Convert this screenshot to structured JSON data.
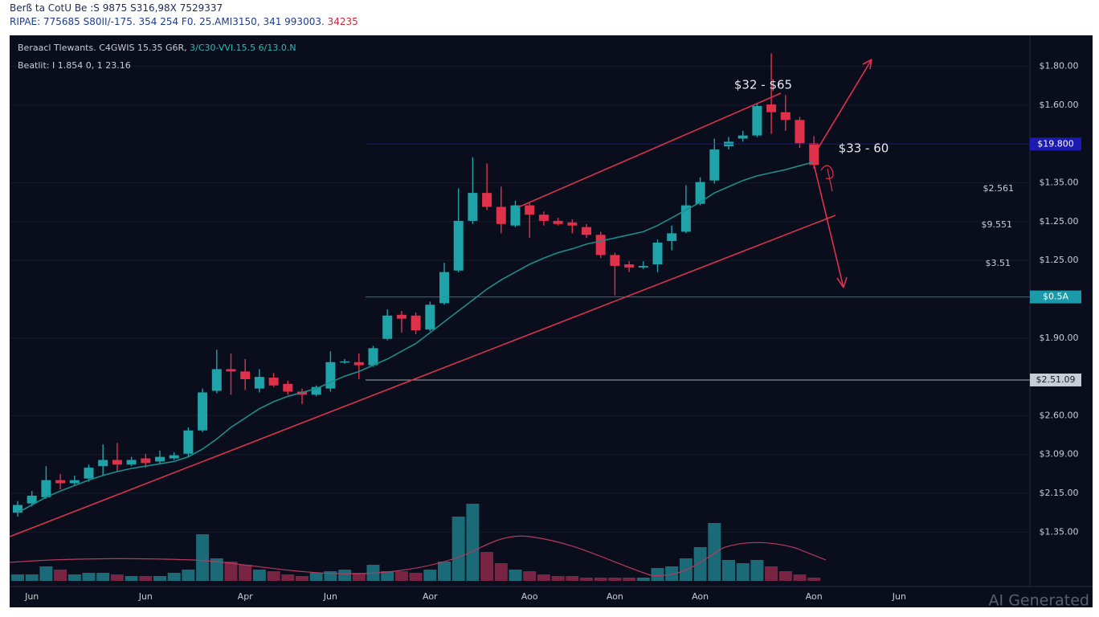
{
  "header": {
    "line1": "Berß ta CotU Be :S 9875 S316,98X 7529337",
    "line2": "RIPAE: 775685 S80II/-175. 354 254 F0. 25.AMI3150, 341 993003.",
    "line2_red": "34235"
  },
  "chart_data": {
    "type": "candlestick",
    "legend_line1": "Beraacl Tlewants. C4GWIS 15.35 G6R,",
    "legend_line1_teal": "3/C30-VVI.15.5 6/13.0.N",
    "legend_line2": "Beatlit: I 1.854 0, 1 23.16",
    "annotations": [
      "$32 - $65",
      "$33 - 60",
      "$2.561",
      "$9.551",
      "$3.51"
    ],
    "watermark": "AI Generated",
    "categories": [
      null,
      "Jun",
      null,
      null,
      null,
      null,
      null,
      null,
      null,
      "Jun",
      null,
      null,
      null,
      null,
      null,
      null,
      "Apr",
      null,
      null,
      null,
      null,
      null,
      "Jun",
      null,
      null,
      null,
      null,
      null,
      null,
      "Aor",
      null,
      null,
      null,
      null,
      null,
      null,
      "Aoo",
      null,
      null,
      null,
      null,
      null,
      "Aon",
      null,
      null,
      null,
      null,
      null,
      "Aon",
      null,
      null,
      null,
      null,
      null,
      null,
      null,
      "Aon",
      null,
      null,
      null,
      null,
      null,
      "Jun"
    ],
    "open": [
      1.5,
      1.74,
      1.9,
      2.34,
      2.26,
      2.38,
      2.7,
      2.86,
      2.74,
      2.9,
      2.82,
      2.9,
      3.02,
      3.62,
      4.64,
      5.2,
      5.14,
      4.7,
      4.98,
      4.82,
      4.62,
      4.54,
      4.7,
      5.38,
      5.38,
      5.3,
      5.98,
      6.6,
      6.58,
      6.22,
      6.9,
      7.74,
      9.02,
      9.74,
      9.38,
      8.9,
      9.42,
      9.18,
      9.02,
      8.98,
      8.86,
      8.66,
      8.14,
      7.9,
      7.82,
      7.9,
      8.5,
      8.74,
      9.46,
      10.06,
      10.94,
      11.14,
      11.22,
      12.02,
      11.82,
      11.62,
      11.02,
      null,
      null,
      null,
      null,
      null,
      null
    ],
    "high": [
      1.8,
      2.06,
      2.7,
      2.5,
      2.46,
      2.74,
      3.26,
      3.3,
      2.94,
      3.02,
      3.1,
      3.06,
      3.7,
      4.7,
      5.7,
      5.6,
      5.46,
      5.2,
      5.1,
      4.9,
      4.7,
      4.78,
      5.66,
      5.46,
      5.6,
      5.8,
      6.74,
      6.7,
      6.66,
      6.94,
      7.94,
      9.86,
      10.66,
      10.5,
      9.9,
      9.54,
      9.5,
      9.26,
      9.1,
      9.06,
      8.94,
      8.74,
      8.2,
      7.98,
      7.98,
      8.54,
      8.9,
      9.94,
      10.14,
      11.14,
      11.18,
      11.34,
      12.06,
      13.34,
      12.26,
      11.7,
      11.2,
      null,
      null,
      null,
      null,
      null,
      null
    ],
    "low": [
      1.4,
      1.66,
      1.86,
      2.1,
      2.22,
      2.3,
      2.46,
      2.54,
      2.7,
      2.66,
      2.74,
      2.86,
      2.94,
      3.58,
      4.58,
      4.54,
      4.66,
      4.6,
      4.74,
      4.54,
      4.3,
      4.5,
      4.62,
      5.34,
      4.94,
      5.26,
      5.94,
      6.14,
      6.1,
      6.18,
      6.86,
      7.7,
      8.94,
      9.3,
      8.7,
      8.86,
      8.58,
      8.9,
      8.9,
      8.7,
      8.58,
      8.06,
      7.1,
      7.7,
      7.78,
      7.7,
      8.26,
      8.7,
      9.42,
      9.98,
      10.86,
      11.06,
      11.18,
      11.26,
      11.34,
      10.9,
      10.36,
      null,
      null,
      null,
      null,
      null,
      null
    ],
    "close": [
      1.7,
      1.94,
      2.34,
      2.26,
      2.34,
      2.66,
      2.86,
      2.74,
      2.86,
      2.78,
      2.94,
      2.98,
      3.62,
      4.6,
      5.2,
      5.14,
      4.94,
      5.0,
      4.78,
      4.62,
      4.54,
      4.74,
      5.38,
      5.4,
      5.3,
      5.74,
      6.58,
      6.5,
      6.2,
      6.86,
      7.7,
      9.02,
      9.74,
      9.38,
      8.94,
      9.42,
      9.18,
      9.02,
      8.94,
      8.9,
      8.66,
      8.14,
      7.86,
      7.82,
      7.86,
      8.46,
      8.7,
      9.42,
      10.02,
      10.86,
      11.06,
      11.22,
      11.98,
      11.82,
      11.62,
      11.02,
      10.46,
      null,
      null,
      null,
      null,
      null,
      null
    ],
    "volume": [
      8,
      8,
      18,
      14,
      8,
      10,
      10,
      8,
      6,
      6,
      6,
      10,
      14,
      58,
      28,
      24,
      20,
      14,
      12,
      8,
      6,
      10,
      12,
      14,
      10,
      20,
      12,
      12,
      10,
      14,
      24,
      80,
      96,
      36,
      22,
      14,
      12,
      8,
      6,
      6,
      4,
      4,
      4,
      4,
      4,
      16,
      18,
      28,
      42,
      72,
      26,
      22,
      26,
      18,
      12,
      8,
      4,
      null,
      null,
      null,
      null,
      null,
      null
    ],
    "ma": [
      1.5,
      1.7,
      1.9,
      2.06,
      2.2,
      2.34,
      2.46,
      2.56,
      2.64,
      2.7,
      2.76,
      2.82,
      2.94,
      3.14,
      3.4,
      3.7,
      3.94,
      4.18,
      4.36,
      4.5,
      4.6,
      4.7,
      4.86,
      5.02,
      5.14,
      5.3,
      5.46,
      5.66,
      5.86,
      6.14,
      6.42,
      6.7,
      6.98,
      7.26,
      7.5,
      7.7,
      7.9,
      8.06,
      8.2,
      8.3,
      8.42,
      8.5,
      8.58,
      8.66,
      8.74,
      8.9,
      9.1,
      9.3,
      9.5,
      9.74,
      9.9,
      10.06,
      10.18,
      10.26,
      10.34,
      10.44,
      10.54,
      null,
      null,
      null,
      null,
      null,
      null
    ],
    "up_color": "#1fa3a8",
    "down_color": "#e0314b",
    "ma_color": "#1e8c8c",
    "ylim": [
      -0.4,
      13.8
    ],
    "yticks": [
      {
        "value": 13,
        "label": "$1.80.00"
      },
      {
        "value": 12,
        "label": "$1.60.00"
      },
      {
        "value": 10,
        "label": "$1.35.00"
      },
      {
        "value": 9,
        "label": "$1.25.00"
      },
      {
        "value": 8,
        "label": "$1.25.00"
      },
      {
        "value": 6,
        "label": "$1.90.00"
      },
      {
        "value": 4,
        "label": "$2.60.00"
      },
      {
        "value": 3,
        "label": "$3.09.00"
      },
      {
        "value": 2,
        "label": "$2.15.00"
      },
      {
        "value": 1,
        "label": "$1.35.00"
      }
    ],
    "grid": true,
    "price_lines": [
      {
        "value": 11,
        "label": "$19.800",
        "color": "#1c1ab0"
      },
      {
        "value": 7.06,
        "label": "$0.5A",
        "color": "#1a9aa8"
      },
      {
        "value": 4.92,
        "label": "$2.51.09",
        "color": "#c8ccd4"
      }
    ]
  }
}
